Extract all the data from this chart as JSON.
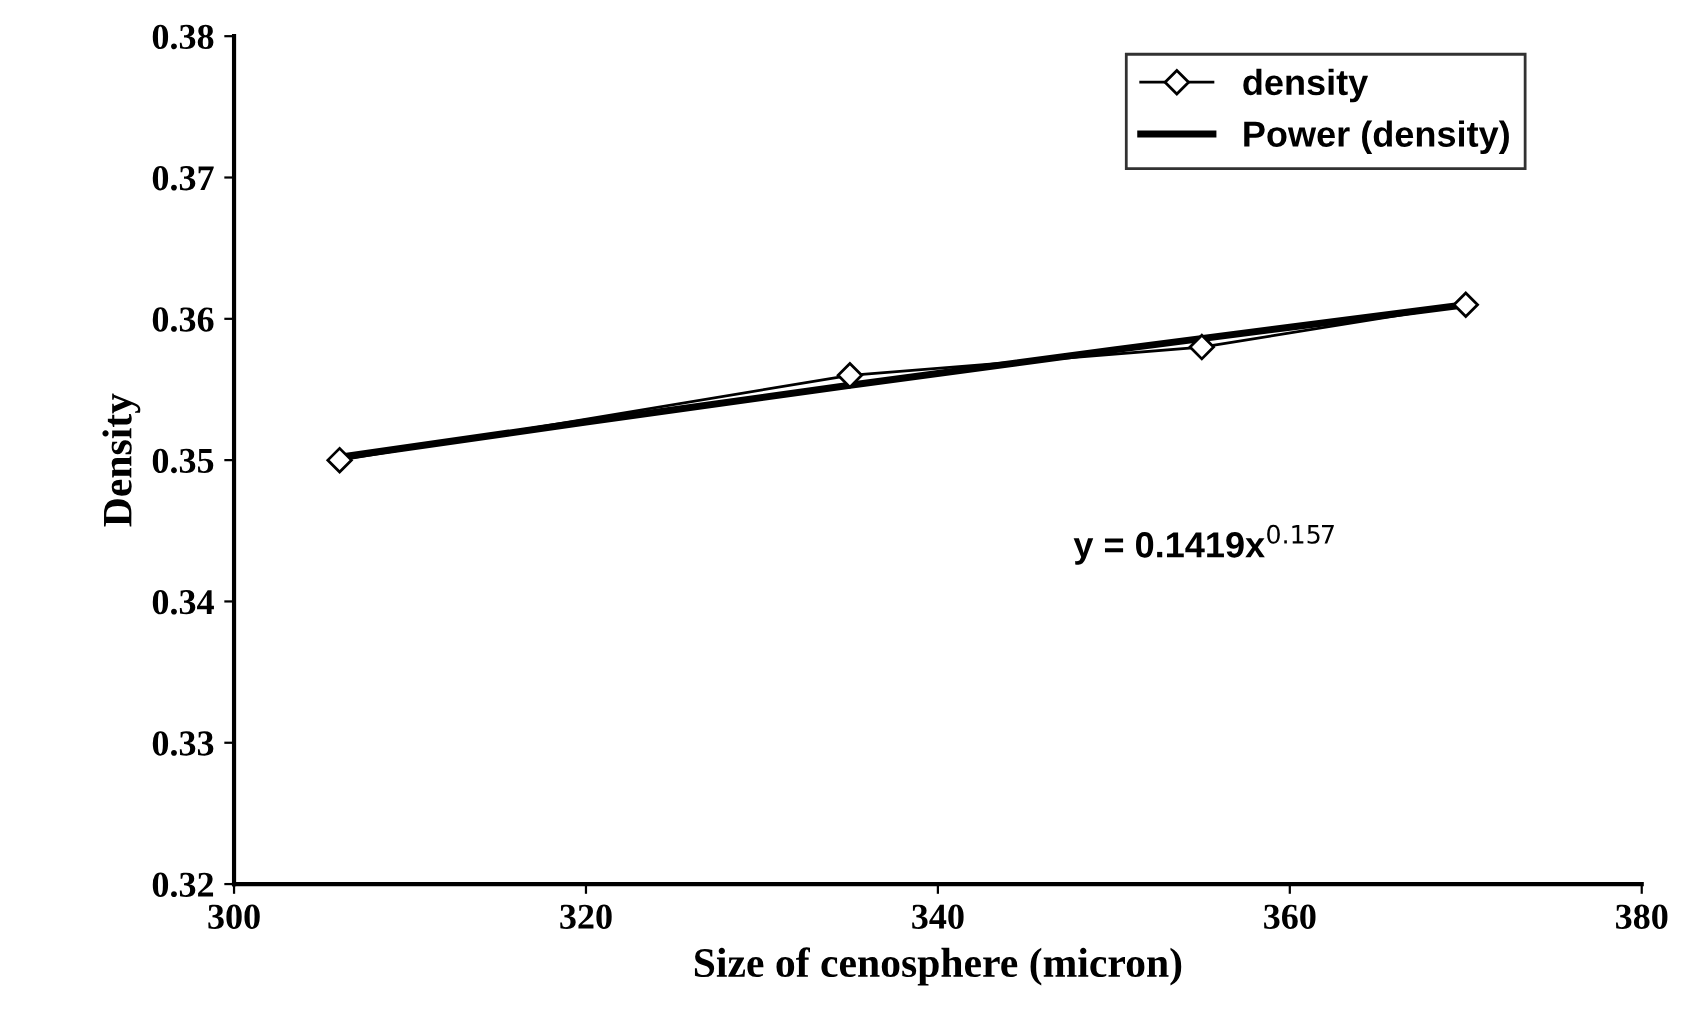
{
  "chart_data": {
    "type": "line",
    "xlabel": "Size of cenosphere (micron)",
    "ylabel": "Density",
    "xlim": [
      300,
      380
    ],
    "xticks": [
      300,
      320,
      340,
      360,
      380
    ],
    "ylim": [
      0.32,
      0.38
    ],
    "yticks": [
      0.32,
      0.33,
      0.34,
      0.35,
      0.36,
      0.37,
      0.38
    ],
    "series": [
      {
        "name": "density",
        "color": "#000000",
        "marker": "diamond",
        "x": [
          306,
          335,
          355,
          370
        ],
        "values": [
          0.35,
          0.356,
          0.358,
          0.361
        ]
      },
      {
        "name": "Power (density)",
        "color": "#000000",
        "marker": "none",
        "x": [
          306,
          320,
          335,
          350,
          360,
          370
        ],
        "values": [
          0.3502,
          0.3527,
          0.3553,
          0.3578,
          0.3594,
          0.361
        ]
      }
    ],
    "annotations": [
      "y = 0.1419x$^{0.157}$"
    ],
    "legend": "top right",
    "grid": false
  }
}
